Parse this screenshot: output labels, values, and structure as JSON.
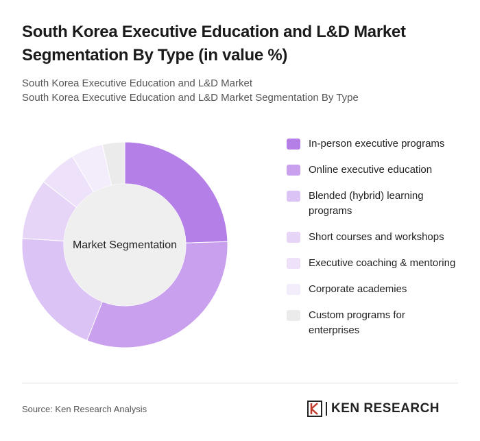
{
  "chart_data": {
    "type": "donut",
    "title": "South Korea Executive Education and L&D Market Segmentation By Type (in value %)",
    "subtitle": [
      "South Korea Executive Education and L&D Market",
      "South Korea Executive Education and L&D Market Segmentation By Type"
    ],
    "center_label": "Market Segmentation",
    "categories": [
      "In-person executive programs",
      "Online executive education",
      "Blended (hybrid) learning programs",
      "Short courses and workshops",
      "Executive coaching & mentoring",
      "Corporate academies",
      "Custom programs for enterprises"
    ],
    "values": [
      24.5,
      31.5,
      20,
      9.5,
      6,
      5,
      3.5
    ],
    "colors": [
      "#b57fe8",
      "#c9a0ee",
      "#dcc3f5",
      "#e6d5f7",
      "#ede2f9",
      "#f3ecfb",
      "#ebebeb"
    ],
    "legend": "right",
    "source": "Source: Ken Research Analysis",
    "logo": "KEN RESEARCH"
  }
}
